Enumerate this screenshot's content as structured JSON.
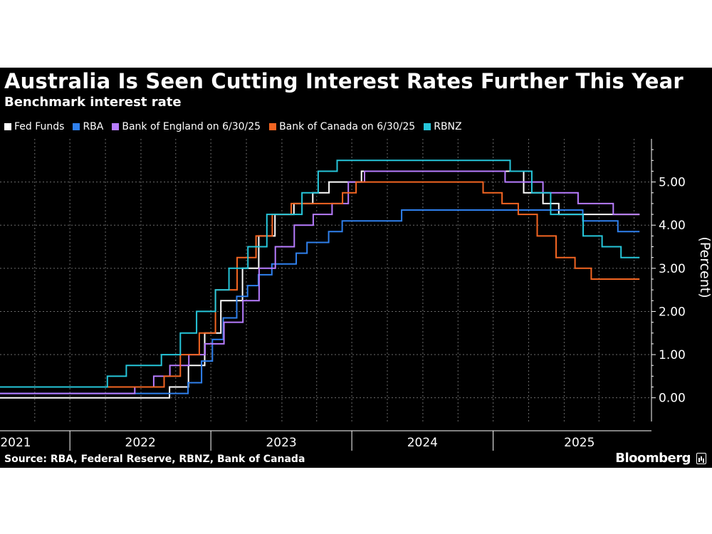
{
  "title": "Australia Is Seen Cutting Interest Rates Further This Year",
  "subtitle": "Benchmark interest rate",
  "source": "Source: RBA, Federal Reserve, RBNZ, Bank of Canada",
  "brand": "Bloomberg",
  "chart_data": {
    "type": "line",
    "step": true,
    "ylabel": "(Percent)",
    "ylim": [
      -0.55,
      6.0
    ],
    "xlim": [
      "2021-01-01",
      "2025-08-15"
    ],
    "y_ticks": [
      "0.00",
      "1.00",
      "2.00",
      "3.00",
      "4.00",
      "5.00"
    ],
    "y_tick_values": [
      0,
      1,
      2,
      3,
      4,
      5
    ],
    "x_year_labels": [
      {
        "label": "2021",
        "date": "2021-01-01",
        "tick": "2021-07-01"
      },
      {
        "label": "2022",
        "date": "2021-07-01",
        "tick": "2022-07-01"
      },
      {
        "label": "2023",
        "date": "2022-07-01",
        "tick": "2023-07-01"
      },
      {
        "label": "2024",
        "date": "2023-07-01",
        "tick": "2024-07-01"
      },
      {
        "label": "2025",
        "date": "2024-07-01",
        "tick": null
      }
    ],
    "grid": true,
    "legend_position": "top-left",
    "series": [
      {
        "name": "Fed Funds",
        "color": "#ffffff",
        "points": [
          [
            "2021-01-01",
            0.0
          ],
          [
            "2022-03-16",
            0.25
          ],
          [
            "2022-05-04",
            0.75
          ],
          [
            "2022-06-15",
            1.5
          ],
          [
            "2022-07-27",
            2.25
          ],
          [
            "2022-09-21",
            3.0
          ],
          [
            "2022-11-02",
            3.75
          ],
          [
            "2022-12-14",
            4.25
          ],
          [
            "2023-02-01",
            4.5
          ],
          [
            "2023-03-22",
            4.75
          ],
          [
            "2023-05-03",
            5.0
          ],
          [
            "2023-07-26",
            5.25
          ],
          [
            "2024-09-18",
            4.75
          ],
          [
            "2024-11-07",
            4.5
          ],
          [
            "2024-12-18",
            4.25
          ],
          [
            "2025-07-15",
            4.25
          ]
        ]
      },
      {
        "name": "RBA",
        "color": "#2f80ed",
        "points": [
          [
            "2021-01-01",
            0.1
          ],
          [
            "2022-05-03",
            0.35
          ],
          [
            "2022-06-07",
            0.85
          ],
          [
            "2022-07-05",
            1.35
          ],
          [
            "2022-08-02",
            1.85
          ],
          [
            "2022-09-06",
            2.35
          ],
          [
            "2022-10-04",
            2.6
          ],
          [
            "2022-11-01",
            2.85
          ],
          [
            "2022-12-06",
            3.1
          ],
          [
            "2023-02-07",
            3.35
          ],
          [
            "2023-03-07",
            3.6
          ],
          [
            "2023-05-02",
            3.85
          ],
          [
            "2023-06-06",
            4.1
          ],
          [
            "2023-11-07",
            4.35
          ],
          [
            "2025-02-18",
            4.1
          ],
          [
            "2025-05-20",
            3.85
          ],
          [
            "2025-07-15",
            3.85
          ]
        ]
      },
      {
        "name": "Bank of England on 6/30/25",
        "color": "#b77cff",
        "points": [
          [
            "2021-01-01",
            0.1
          ],
          [
            "2021-12-16",
            0.25
          ],
          [
            "2022-02-03",
            0.5
          ],
          [
            "2022-03-17",
            0.75
          ],
          [
            "2022-05-05",
            1.0
          ],
          [
            "2022-06-16",
            1.25
          ],
          [
            "2022-08-04",
            1.75
          ],
          [
            "2022-09-22",
            2.25
          ],
          [
            "2022-11-03",
            3.0
          ],
          [
            "2022-12-15",
            3.5
          ],
          [
            "2023-02-02",
            4.0
          ],
          [
            "2023-03-23",
            4.25
          ],
          [
            "2023-05-11",
            4.5
          ],
          [
            "2023-06-22",
            5.0
          ],
          [
            "2023-08-03",
            5.25
          ],
          [
            "2024-08-01",
            5.0
          ],
          [
            "2024-11-07",
            4.75
          ],
          [
            "2025-02-06",
            4.5
          ],
          [
            "2025-05-08",
            4.25
          ],
          [
            "2025-07-15",
            4.25
          ]
        ]
      },
      {
        "name": "Bank of Canada on 6/30/25",
        "color": "#f26522",
        "points": [
          [
            "2021-01-01",
            0.25
          ],
          [
            "2022-03-02",
            0.5
          ],
          [
            "2022-04-13",
            1.0
          ],
          [
            "2022-06-01",
            1.5
          ],
          [
            "2022-07-13",
            2.5
          ],
          [
            "2022-09-07",
            3.25
          ],
          [
            "2022-10-26",
            3.75
          ],
          [
            "2022-12-07",
            4.25
          ],
          [
            "2023-01-25",
            4.5
          ],
          [
            "2023-06-07",
            4.75
          ],
          [
            "2023-07-12",
            5.0
          ],
          [
            "2024-06-05",
            4.75
          ],
          [
            "2024-07-24",
            4.5
          ],
          [
            "2024-09-04",
            4.25
          ],
          [
            "2024-10-23",
            3.75
          ],
          [
            "2024-12-11",
            3.25
          ],
          [
            "2025-01-29",
            3.0
          ],
          [
            "2025-03-12",
            2.75
          ],
          [
            "2025-07-15",
            2.75
          ]
        ]
      },
      {
        "name": "RBNZ",
        "color": "#26c6da",
        "points": [
          [
            "2021-01-01",
            0.25
          ],
          [
            "2021-10-06",
            0.5
          ],
          [
            "2021-11-24",
            0.75
          ],
          [
            "2022-02-23",
            1.0
          ],
          [
            "2022-04-13",
            1.5
          ],
          [
            "2022-05-25",
            2.0
          ],
          [
            "2022-07-13",
            2.5
          ],
          [
            "2022-08-17",
            3.0
          ],
          [
            "2022-10-05",
            3.5
          ],
          [
            "2022-11-23",
            4.25
          ],
          [
            "2023-02-22",
            4.75
          ],
          [
            "2023-04-05",
            5.25
          ],
          [
            "2023-05-24",
            5.5
          ],
          [
            "2024-08-14",
            5.25
          ],
          [
            "2024-10-09",
            4.75
          ],
          [
            "2024-11-27",
            4.25
          ],
          [
            "2025-02-19",
            3.75
          ],
          [
            "2025-04-09",
            3.5
          ],
          [
            "2025-05-28",
            3.25
          ],
          [
            "2025-07-15",
            3.25
          ]
        ]
      }
    ]
  }
}
